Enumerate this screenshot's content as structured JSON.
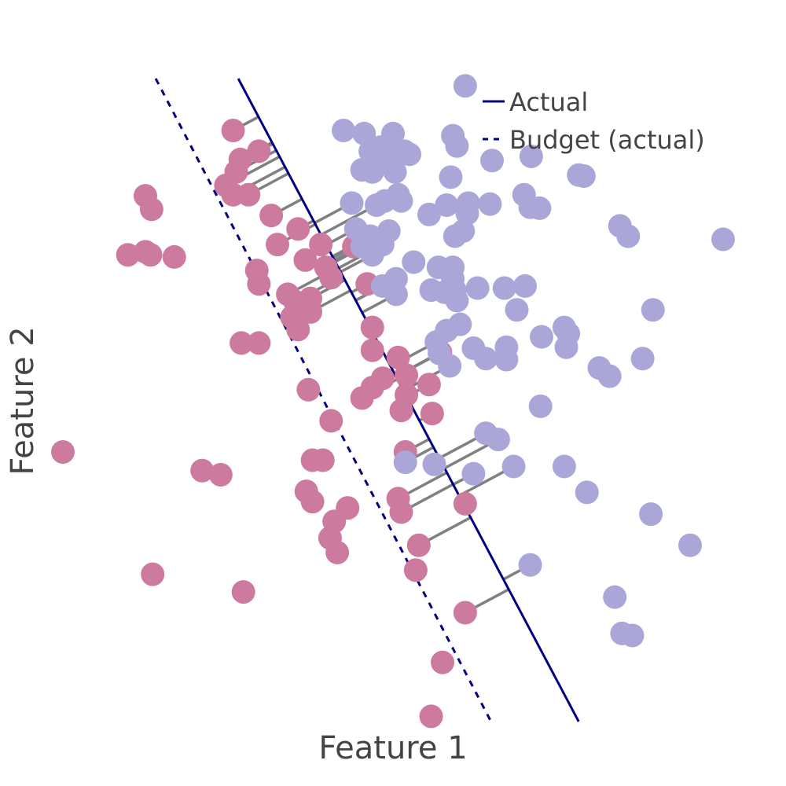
{
  "chart_data": {
    "type": "scatter",
    "xlabel": "Feature 1",
    "ylabel": "Feature 2",
    "xlim": [
      -3.2,
      3.2
    ],
    "ylim": [
      -3.2,
      3.0
    ],
    "grid": false,
    "legend_position": "top-right",
    "colors": {
      "class_pink": "#cc7a9e",
      "class_purple": "#aaa7d8",
      "actual_line": "#000080",
      "budget_line": "#000080",
      "connector": "#808080"
    },
    "actual_line": {
      "name": "Actual",
      "style": "solid",
      "points": [
        [
          -1.5,
          3.0
        ],
        [
          1.8,
          -3.2
        ]
      ]
    },
    "budget_line": {
      "name": "Budget (actual)",
      "style": "dashed",
      "points": [
        [
          -2.3,
          3.0
        ],
        [
          0.95,
          -3.2
        ]
      ]
    },
    "legend": [
      "Actual",
      "Budget (actual)"
    ],
    "series": [
      {
        "class": "pink",
        "points": [
          [
            -1.55,
            2.5
          ],
          [
            -1.3,
            2.3
          ],
          [
            -1.48,
            2.22
          ],
          [
            -1.52,
            2.1
          ],
          [
            -1.62,
            1.97
          ],
          [
            -1.55,
            1.88
          ],
          [
            -1.4,
            1.88
          ],
          [
            -1.18,
            1.68
          ],
          [
            -0.92,
            1.55
          ],
          [
            -1.12,
            1.4
          ],
          [
            -0.7,
            1.4
          ],
          [
            -0.38,
            1.38
          ],
          [
            -0.85,
            1.25
          ],
          [
            -0.65,
            1.18
          ],
          [
            -0.6,
            1.08
          ],
          [
            -0.25,
            1.02
          ],
          [
            -1.3,
            1.02
          ],
          [
            -1.02,
            0.92
          ],
          [
            -0.95,
            0.85
          ],
          [
            -0.8,
            0.88
          ],
          [
            -0.8,
            0.75
          ],
          [
            -0.98,
            0.7
          ],
          [
            -0.92,
            0.58
          ],
          [
            -0.2,
            0.6
          ],
          [
            -0.2,
            0.38
          ],
          [
            0.05,
            0.31
          ],
          [
            0.46,
            0.36
          ],
          [
            -0.1,
            0.11
          ],
          [
            0.13,
            0.14
          ],
          [
            0.35,
            0.05
          ],
          [
            -0.2,
            0.02
          ],
          [
            0.13,
            -0.05
          ],
          [
            -0.3,
            -0.08
          ],
          [
            0.08,
            -0.2
          ],
          [
            0.38,
            -0.23
          ],
          [
            -0.82,
            0.0
          ],
          [
            -0.6,
            -0.3
          ],
          [
            -0.78,
            -0.68
          ],
          [
            -0.68,
            -0.68
          ],
          [
            0.12,
            -0.6
          ],
          [
            -0.84,
            -0.98
          ],
          [
            -0.78,
            -1.08
          ],
          [
            -0.44,
            -1.14
          ],
          [
            -0.57,
            -1.27
          ],
          [
            -0.61,
            -1.43
          ],
          [
            -0.54,
            -1.57
          ],
          [
            0.05,
            -1.05
          ],
          [
            0.08,
            -1.18
          ],
          [
            0.25,
            -1.5
          ],
          [
            0.22,
            -1.74
          ],
          [
            0.7,
            -1.1
          ],
          [
            0.7,
            -2.15
          ],
          [
            0.48,
            -2.63
          ],
          [
            0.37,
            -3.15
          ],
          [
            -2.4,
            1.87
          ],
          [
            -2.34,
            1.74
          ],
          [
            -2.57,
            1.3
          ],
          [
            -2.4,
            1.33
          ],
          [
            -2.35,
            1.3
          ],
          [
            -2.12,
            1.28
          ],
          [
            -1.47,
            0.45
          ],
          [
            -1.3,
            0.45
          ],
          [
            -1.32,
            1.15
          ],
          [
            -1.85,
            -0.78
          ],
          [
            -1.67,
            -0.82
          ],
          [
            -3.2,
            -0.6
          ],
          [
            -2.33,
            -1.78
          ],
          [
            -1.45,
            -1.95
          ]
        ]
      },
      {
        "class": "purple",
        "points": [
          [
            0.7,
            2.93
          ],
          [
            -0.48,
            2.5
          ],
          [
            -0.28,
            2.47
          ],
          [
            -0.12,
            2.34
          ],
          [
            0.0,
            2.47
          ],
          [
            0.58,
            2.45
          ],
          [
            0.62,
            2.35
          ],
          [
            -0.22,
            2.3
          ],
          [
            -0.1,
            2.21
          ],
          [
            0.0,
            2.27
          ],
          [
            0.11,
            2.3
          ],
          [
            0.16,
            2.27
          ],
          [
            0.96,
            2.21
          ],
          [
            1.34,
            2.25
          ],
          [
            -0.3,
            2.12
          ],
          [
            -0.2,
            2.1
          ],
          [
            0.02,
            2.1
          ],
          [
            0.56,
            2.05
          ],
          [
            1.8,
            2.07
          ],
          [
            1.85,
            2.06
          ],
          [
            -0.4,
            1.8
          ],
          [
            -0.16,
            1.78
          ],
          [
            0.08,
            1.82
          ],
          [
            0.52,
            1.78
          ],
          [
            0.73,
            1.8
          ],
          [
            0.94,
            1.79
          ],
          [
            1.27,
            1.88
          ],
          [
            1.33,
            1.76
          ],
          [
            1.42,
            1.75
          ],
          [
            0.35,
            1.69
          ],
          [
            0.72,
            1.7
          ],
          [
            0.05,
            1.88
          ],
          [
            -0.08,
            1.82
          ],
          [
            -0.36,
            1.55
          ],
          [
            -0.22,
            1.48
          ],
          [
            -0.21,
            1.42
          ],
          [
            -0.3,
            1.38
          ],
          [
            -0.2,
            1.3
          ],
          [
            -0.04,
            1.53
          ],
          [
            -0.1,
            1.4
          ],
          [
            0.6,
            1.48
          ],
          [
            0.68,
            1.53
          ],
          [
            2.2,
            1.58
          ],
          [
            2.28,
            1.48
          ],
          [
            3.2,
            1.45
          ],
          [
            0.2,
            1.23
          ],
          [
            0.44,
            1.18
          ],
          [
            0.58,
            1.18
          ],
          [
            0.58,
            1.07
          ],
          [
            0.03,
            1.07
          ],
          [
            -0.1,
            1.0
          ],
          [
            0.03,
            0.92
          ],
          [
            0.37,
            0.96
          ],
          [
            0.5,
            0.94
          ],
          [
            0.6,
            0.96
          ],
          [
            0.62,
            0.86
          ],
          [
            0.82,
            0.98
          ],
          [
            1.08,
            0.98
          ],
          [
            1.28,
            1.0
          ],
          [
            1.2,
            0.77
          ],
          [
            2.52,
            0.77
          ],
          [
            0.65,
            0.63
          ],
          [
            0.52,
            0.57
          ],
          [
            0.42,
            0.46
          ],
          [
            0.45,
            0.35
          ],
          [
            0.78,
            0.4
          ],
          [
            1.44,
            0.51
          ],
          [
            1.66,
            0.6
          ],
          [
            1.7,
            0.54
          ],
          [
            0.9,
            0.3
          ],
          [
            1.1,
            0.29
          ],
          [
            1.1,
            0.41
          ],
          [
            0.55,
            0.23
          ],
          [
            1.68,
            0.41
          ],
          [
            2.0,
            0.21
          ],
          [
            2.1,
            0.13
          ],
          [
            2.42,
            0.3
          ],
          [
            1.43,
            -0.16
          ],
          [
            0.9,
            -0.42
          ],
          [
            1.02,
            -0.48
          ],
          [
            0.12,
            -0.7
          ],
          [
            0.4,
            -0.72
          ],
          [
            0.78,
            -0.81
          ],
          [
            1.17,
            -0.74
          ],
          [
            1.66,
            -0.74
          ],
          [
            1.88,
            -0.99
          ],
          [
            2.5,
            -1.2
          ],
          [
            2.88,
            -1.5
          ],
          [
            1.33,
            -1.69
          ],
          [
            2.15,
            -2.0
          ],
          [
            2.22,
            -2.35
          ],
          [
            2.32,
            -2.37
          ]
        ]
      }
    ]
  }
}
